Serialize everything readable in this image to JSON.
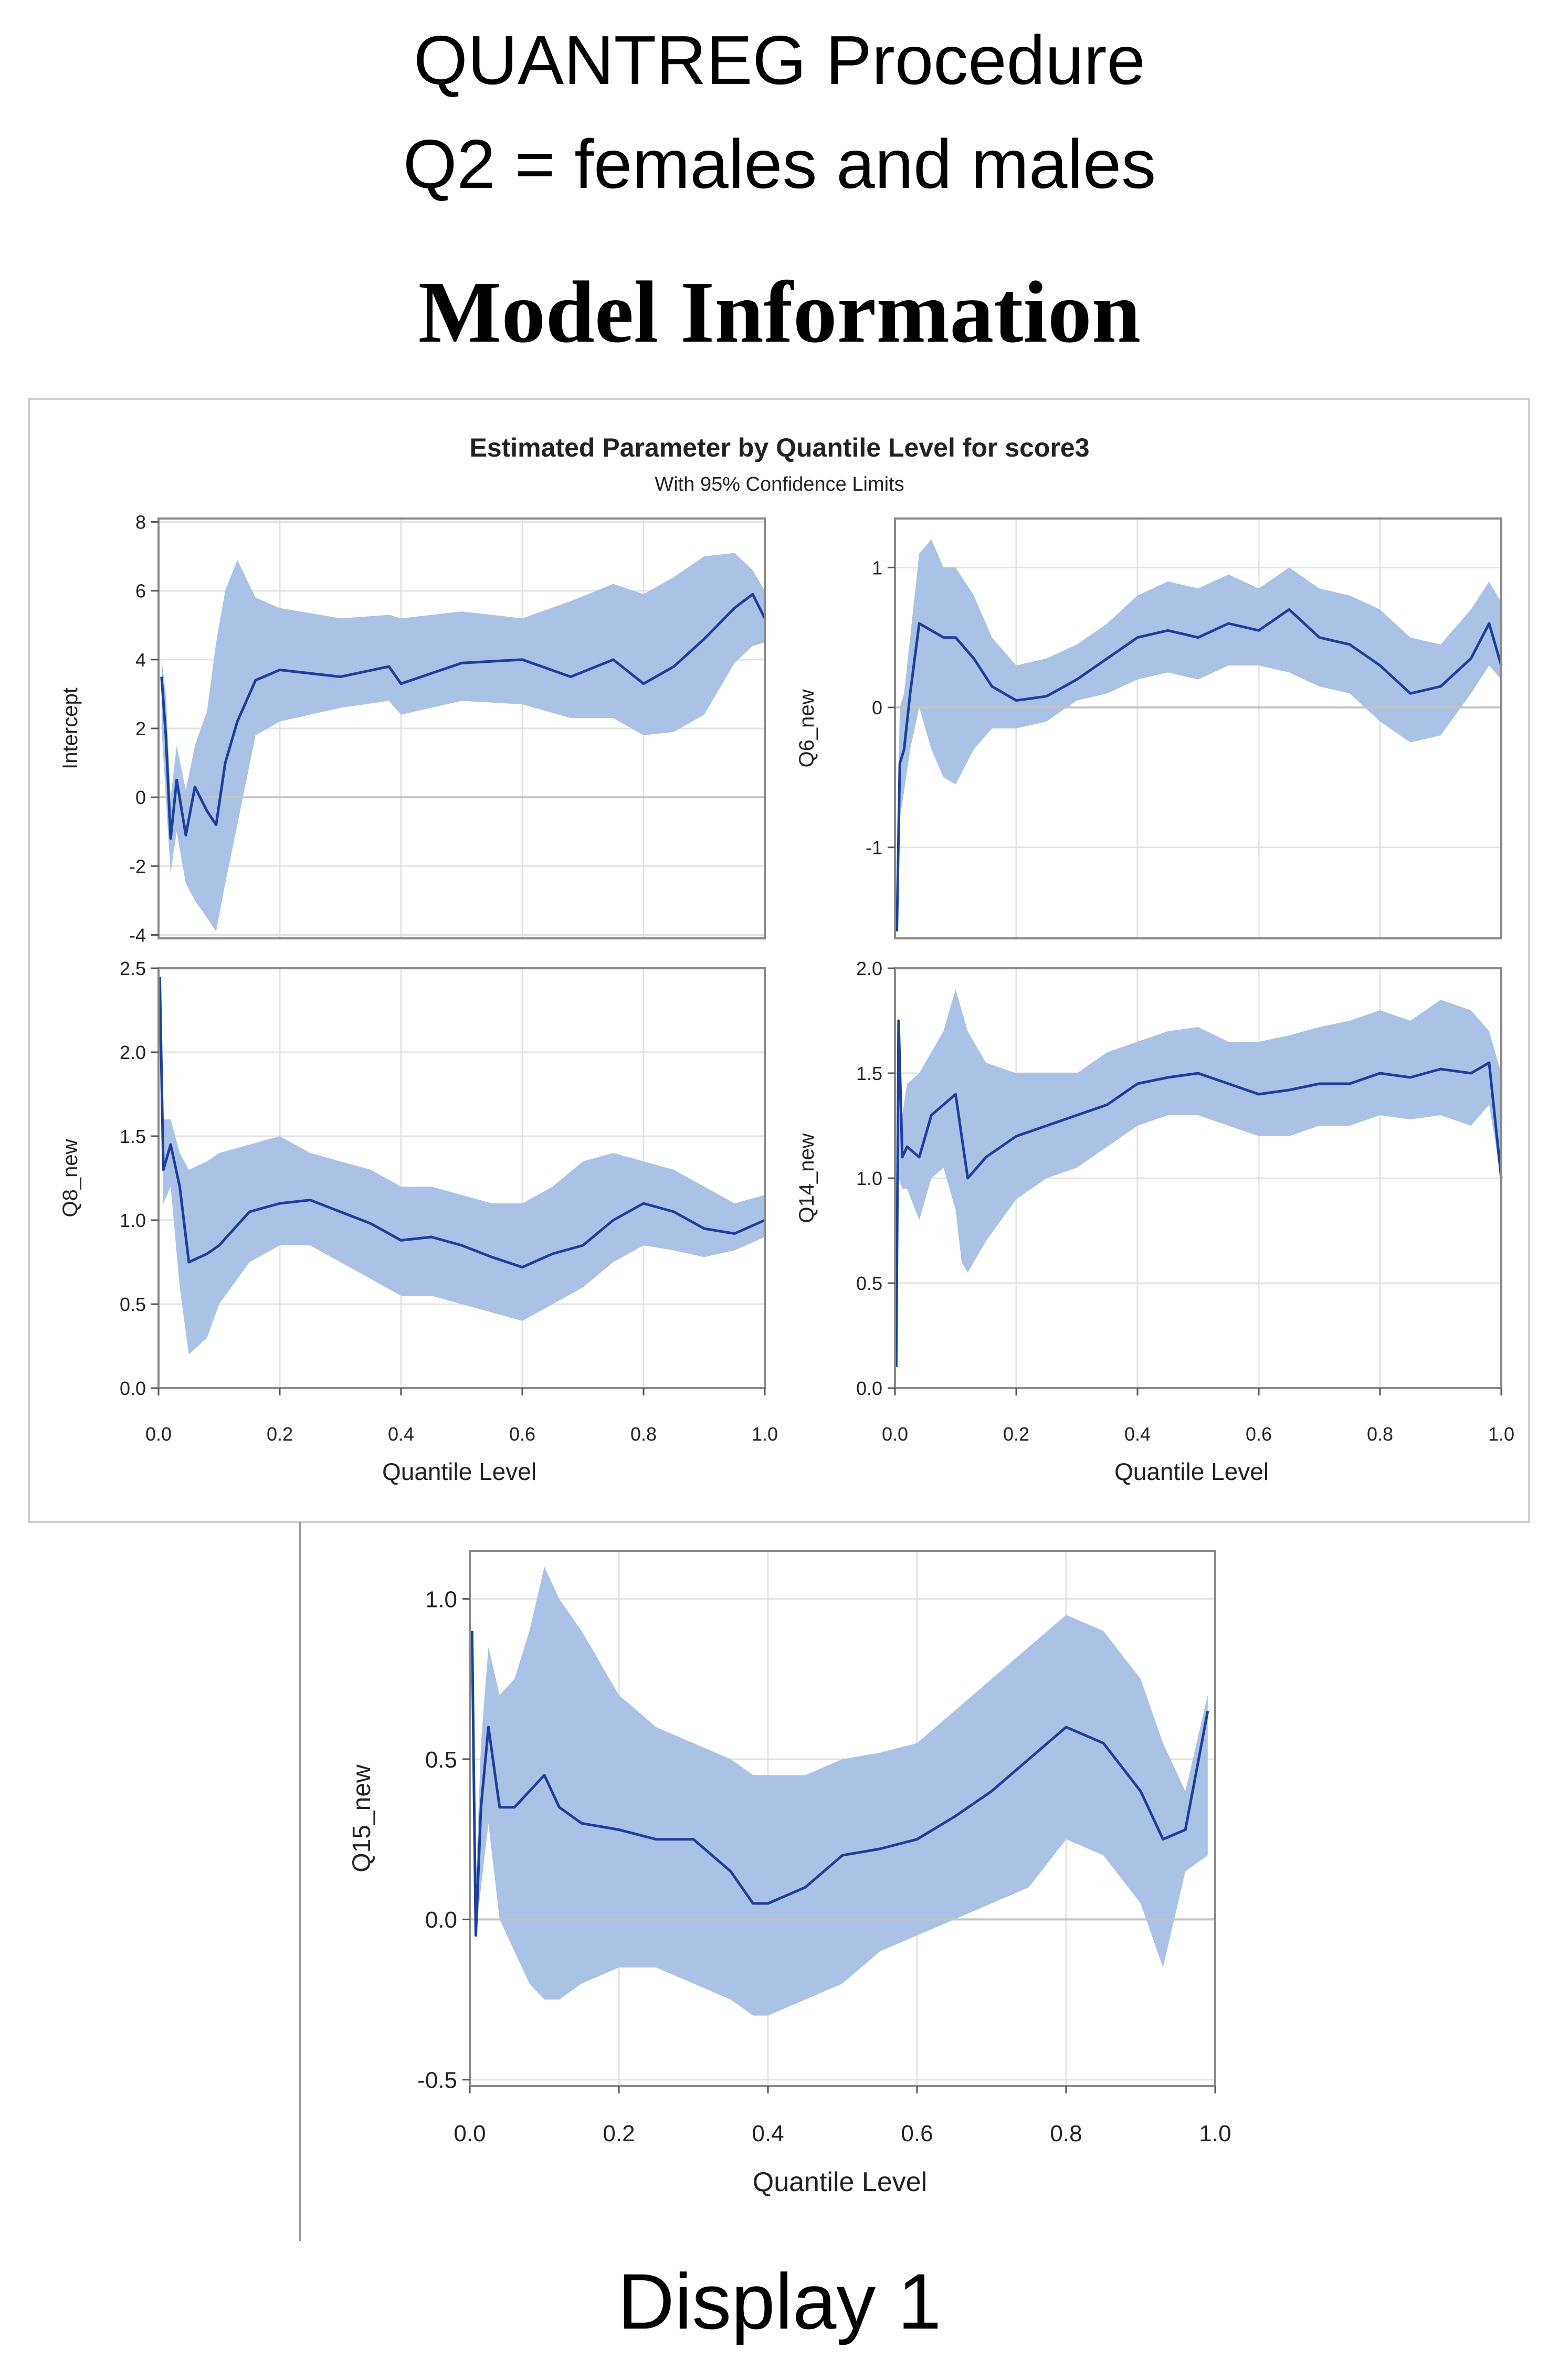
{
  "header": {
    "title": "QUANTREG Procedure",
    "subtitle": "Q2 = females and males",
    "section": "Model Information"
  },
  "footer": {
    "caption": "Display 1"
  },
  "colors": {
    "line": "#1d3f9e",
    "band": "#a9c2e6",
    "grid": "#e3e3e3",
    "frame": "#8a8a8a",
    "zeroline": "#c4c4c4",
    "panelBorder": "#cfcfcf"
  },
  "chart_data": {
    "type": "line",
    "title": "Estimated Parameter by Quantile Level for score3",
    "subtitle": "With 95% Confidence Limits",
    "xlabel": "Quantile Level",
    "xlim": [
      0,
      1
    ],
    "xticks": [
      "0.0",
      "0.2",
      "0.4",
      "0.6",
      "0.8",
      "1.0"
    ],
    "panels": [
      {
        "name": "Intercept",
        "ylabel": "Intercept",
        "ylim": [
          -4.1,
          8.1
        ],
        "yticks": [
          -4,
          -2,
          0,
          2,
          4,
          6,
          8
        ],
        "ytick_labels": [
          "-4",
          "-2",
          "0",
          "2",
          "4",
          "6",
          "8"
        ],
        "x": [
          0.005,
          0.012,
          0.02,
          0.03,
          0.045,
          0.06,
          0.08,
          0.095,
          0.11,
          0.13,
          0.16,
          0.2,
          0.3,
          0.38,
          0.4,
          0.5,
          0.6,
          0.68,
          0.75,
          0.8,
          0.85,
          0.9,
          0.95,
          0.98,
          1.0
        ],
        "est": [
          3.5,
          1.8,
          -1.2,
          0.5,
          -1.1,
          0.3,
          -0.4,
          -0.8,
          1.0,
          2.2,
          3.4,
          3.7,
          3.5,
          3.8,
          3.3,
          3.9,
          4.0,
          3.5,
          4.0,
          3.3,
          3.8,
          4.6,
          5.5,
          5.9,
          5.2
        ],
        "lower": [
          2.0,
          0.0,
          -2.2,
          -1.0,
          -2.5,
          -3.0,
          -3.5,
          -3.9,
          -2.5,
          -0.8,
          1.8,
          2.2,
          2.6,
          2.8,
          2.4,
          2.8,
          2.7,
          2.3,
          2.3,
          1.8,
          1.9,
          2.4,
          3.9,
          4.4,
          4.5
        ],
        "upper": [
          4.0,
          3.0,
          0.0,
          1.5,
          0.2,
          1.5,
          2.5,
          4.5,
          6.0,
          6.9,
          5.8,
          5.5,
          5.2,
          5.3,
          5.2,
          5.4,
          5.2,
          5.7,
          6.2,
          5.9,
          6.4,
          7.0,
          7.1,
          6.6,
          6.0
        ]
      },
      {
        "name": "Q6_new",
        "ylabel": "Q6_new",
        "ylim": [
          -1.65,
          1.35
        ],
        "yticks": [
          -1,
          0,
          1
        ],
        "ytick_labels": [
          "-1",
          "0",
          "1"
        ],
        "x": [
          0.003,
          0.008,
          0.015,
          0.025,
          0.04,
          0.06,
          0.08,
          0.1,
          0.13,
          0.16,
          0.2,
          0.25,
          0.3,
          0.35,
          0.4,
          0.45,
          0.5,
          0.55,
          0.6,
          0.65,
          0.7,
          0.75,
          0.8,
          0.85,
          0.9,
          0.95,
          0.98,
          1.0
        ],
        "est": [
          -1.6,
          -0.4,
          -0.3,
          0.1,
          0.6,
          0.55,
          0.5,
          0.5,
          0.35,
          0.15,
          0.05,
          0.08,
          0.2,
          0.35,
          0.5,
          0.55,
          0.5,
          0.6,
          0.55,
          0.7,
          0.5,
          0.45,
          0.3,
          0.1,
          0.15,
          0.35,
          0.6,
          0.3
        ],
        "lower": [
          -1.6,
          -0.8,
          -0.6,
          -0.3,
          0.0,
          -0.3,
          -0.5,
          -0.55,
          -0.3,
          -0.15,
          -0.15,
          -0.1,
          0.05,
          0.1,
          0.2,
          0.25,
          0.2,
          0.3,
          0.3,
          0.25,
          0.15,
          0.1,
          -0.1,
          -0.25,
          -0.2,
          0.1,
          0.3,
          0.2
        ],
        "upper": [
          -1.2,
          0.0,
          0.1,
          0.5,
          1.1,
          1.2,
          1.0,
          1.0,
          0.8,
          0.5,
          0.3,
          0.35,
          0.45,
          0.6,
          0.8,
          0.9,
          0.85,
          0.95,
          0.85,
          1.0,
          0.85,
          0.8,
          0.7,
          0.5,
          0.45,
          0.7,
          0.9,
          0.75
        ]
      },
      {
        "name": "Q8_new",
        "ylabel": "Q8_new",
        "ylim": [
          0,
          2.5
        ],
        "yticks": [
          0,
          0.5,
          1.0,
          1.5,
          2.0,
          2.5
        ],
        "ytick_labels": [
          "0.0",
          "0.5",
          "1.0",
          "1.5",
          "2.0",
          "2.5"
        ],
        "x": [
          0.002,
          0.008,
          0.02,
          0.035,
          0.05,
          0.08,
          0.1,
          0.15,
          0.2,
          0.25,
          0.3,
          0.35,
          0.4,
          0.45,
          0.5,
          0.55,
          0.6,
          0.65,
          0.7,
          0.75,
          0.8,
          0.85,
          0.9,
          0.95,
          1.0
        ],
        "est": [
          2.45,
          1.3,
          1.45,
          1.2,
          0.75,
          0.8,
          0.85,
          1.05,
          1.1,
          1.12,
          1.05,
          0.98,
          0.88,
          0.9,
          0.85,
          0.78,
          0.72,
          0.8,
          0.85,
          1.0,
          1.1,
          1.05,
          0.95,
          0.92,
          1.0
        ],
        "lower": [
          2.2,
          1.1,
          1.2,
          0.6,
          0.2,
          0.3,
          0.5,
          0.75,
          0.85,
          0.85,
          0.75,
          0.65,
          0.55,
          0.55,
          0.5,
          0.45,
          0.4,
          0.5,
          0.6,
          0.75,
          0.85,
          0.82,
          0.78,
          0.82,
          0.9
        ],
        "upper": [
          2.5,
          1.6,
          1.6,
          1.4,
          1.3,
          1.35,
          1.4,
          1.45,
          1.5,
          1.4,
          1.35,
          1.3,
          1.2,
          1.2,
          1.15,
          1.1,
          1.1,
          1.2,
          1.35,
          1.4,
          1.35,
          1.3,
          1.2,
          1.1,
          1.15
        ]
      },
      {
        "name": "Q14_new",
        "ylabel": "Q14_new",
        "ylim": [
          0,
          2.0
        ],
        "yticks": [
          0,
          0.5,
          1.0,
          1.5,
          2.0
        ],
        "ytick_labels": [
          "0.0",
          "0.5",
          "1.0",
          "1.5",
          "2.0"
        ],
        "x": [
          0.002,
          0.006,
          0.012,
          0.02,
          0.04,
          0.06,
          0.08,
          0.1,
          0.11,
          0.12,
          0.15,
          0.2,
          0.25,
          0.3,
          0.35,
          0.4,
          0.45,
          0.5,
          0.55,
          0.6,
          0.65,
          0.7,
          0.75,
          0.8,
          0.85,
          0.9,
          0.95,
          0.98,
          1.0
        ],
        "est": [
          0.1,
          1.75,
          1.1,
          1.15,
          1.1,
          1.3,
          1.35,
          1.4,
          1.2,
          1.0,
          1.1,
          1.2,
          1.25,
          1.3,
          1.35,
          1.45,
          1.48,
          1.5,
          1.45,
          1.4,
          1.42,
          1.45,
          1.45,
          1.5,
          1.48,
          1.52,
          1.5,
          1.55,
          1.0
        ],
        "lower": [
          0.1,
          1.0,
          0.95,
          0.95,
          0.8,
          1.0,
          1.05,
          0.85,
          0.6,
          0.55,
          0.7,
          0.9,
          1.0,
          1.05,
          1.15,
          1.25,
          1.3,
          1.3,
          1.25,
          1.2,
          1.2,
          1.25,
          1.25,
          1.3,
          1.28,
          1.3,
          1.25,
          1.35,
          1.0
        ],
        "upper": [
          0.2,
          1.75,
          1.3,
          1.45,
          1.5,
          1.6,
          1.7,
          1.9,
          1.8,
          1.7,
          1.55,
          1.5,
          1.5,
          1.5,
          1.6,
          1.65,
          1.7,
          1.72,
          1.65,
          1.65,
          1.68,
          1.72,
          1.75,
          1.8,
          1.75,
          1.85,
          1.8,
          1.7,
          1.5
        ]
      },
      {
        "name": "Q15_new",
        "ylabel": "Q15_new",
        "ylim": [
          -0.52,
          1.15
        ],
        "yticks": [
          -0.5,
          0,
          0.5,
          1.0
        ],
        "ytick_labels": [
          "-0.5",
          "0.0",
          "0.5",
          "1.0"
        ],
        "x": [
          0.003,
          0.008,
          0.015,
          0.025,
          0.04,
          0.06,
          0.08,
          0.1,
          0.12,
          0.15,
          0.2,
          0.25,
          0.3,
          0.35,
          0.38,
          0.4,
          0.45,
          0.5,
          0.55,
          0.6,
          0.65,
          0.7,
          0.75,
          0.8,
          0.85,
          0.9,
          0.93,
          0.96,
          0.99
        ],
        "est": [
          0.9,
          -0.05,
          0.35,
          0.6,
          0.35,
          0.35,
          0.4,
          0.45,
          0.35,
          0.3,
          0.28,
          0.25,
          0.25,
          0.15,
          0.05,
          0.05,
          0.1,
          0.2,
          0.22,
          0.25,
          0.32,
          0.4,
          0.5,
          0.6,
          0.55,
          0.4,
          0.25,
          0.28,
          0.65
        ],
        "lower": [
          0.6,
          -0.05,
          0.1,
          0.3,
          0.0,
          -0.1,
          -0.2,
          -0.25,
          -0.25,
          -0.2,
          -0.15,
          -0.15,
          -0.2,
          -0.25,
          -0.3,
          -0.3,
          -0.25,
          -0.2,
          -0.1,
          -0.05,
          0.0,
          0.05,
          0.1,
          0.25,
          0.2,
          0.05,
          -0.15,
          0.15,
          0.2
        ],
        "upper": [
          0.95,
          0.1,
          0.55,
          0.85,
          0.7,
          0.75,
          0.9,
          1.1,
          1.0,
          0.9,
          0.7,
          0.6,
          0.55,
          0.5,
          0.45,
          0.45,
          0.45,
          0.5,
          0.52,
          0.55,
          0.65,
          0.75,
          0.85,
          0.95,
          0.9,
          0.75,
          0.55,
          0.4,
          0.7
        ]
      }
    ]
  }
}
